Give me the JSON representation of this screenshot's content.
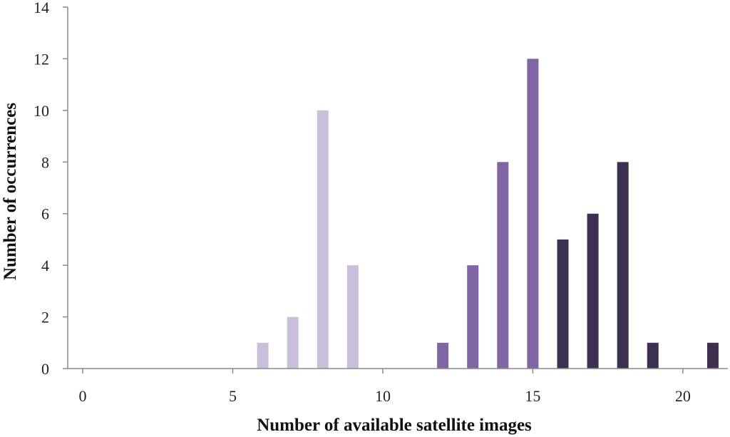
{
  "chart_data": {
    "type": "bar",
    "title": "",
    "xlabel": "Number of available satellite images",
    "ylabel": "Number of occurrences",
    "xlim": [
      -0.5,
      21.5
    ],
    "ylim": [
      0,
      14
    ],
    "x_ticks": [
      0,
      5,
      10,
      15,
      20
    ],
    "y_ticks": [
      0,
      2,
      4,
      6,
      8,
      10,
      12,
      14
    ],
    "grid": false,
    "legend": "none",
    "series": [
      {
        "color": "#c9bfdb",
        "points": [
          {
            "x": 6,
            "y": 1
          },
          {
            "x": 7,
            "y": 2
          },
          {
            "x": 8,
            "y": 10
          },
          {
            "x": 9,
            "y": 4
          }
        ]
      },
      {
        "color": "#8066a3",
        "points": [
          {
            "x": 12,
            "y": 1
          },
          {
            "x": 13,
            "y": 4
          },
          {
            "x": 14,
            "y": 8
          },
          {
            "x": 15,
            "y": 12
          }
        ]
      },
      {
        "color": "#3e3150",
        "points": [
          {
            "x": 16,
            "y": 5
          },
          {
            "x": 17,
            "y": 6
          },
          {
            "x": 18,
            "y": 8
          },
          {
            "x": 19,
            "y": 1
          },
          {
            "x": 21,
            "y": 1
          }
        ]
      }
    ]
  }
}
